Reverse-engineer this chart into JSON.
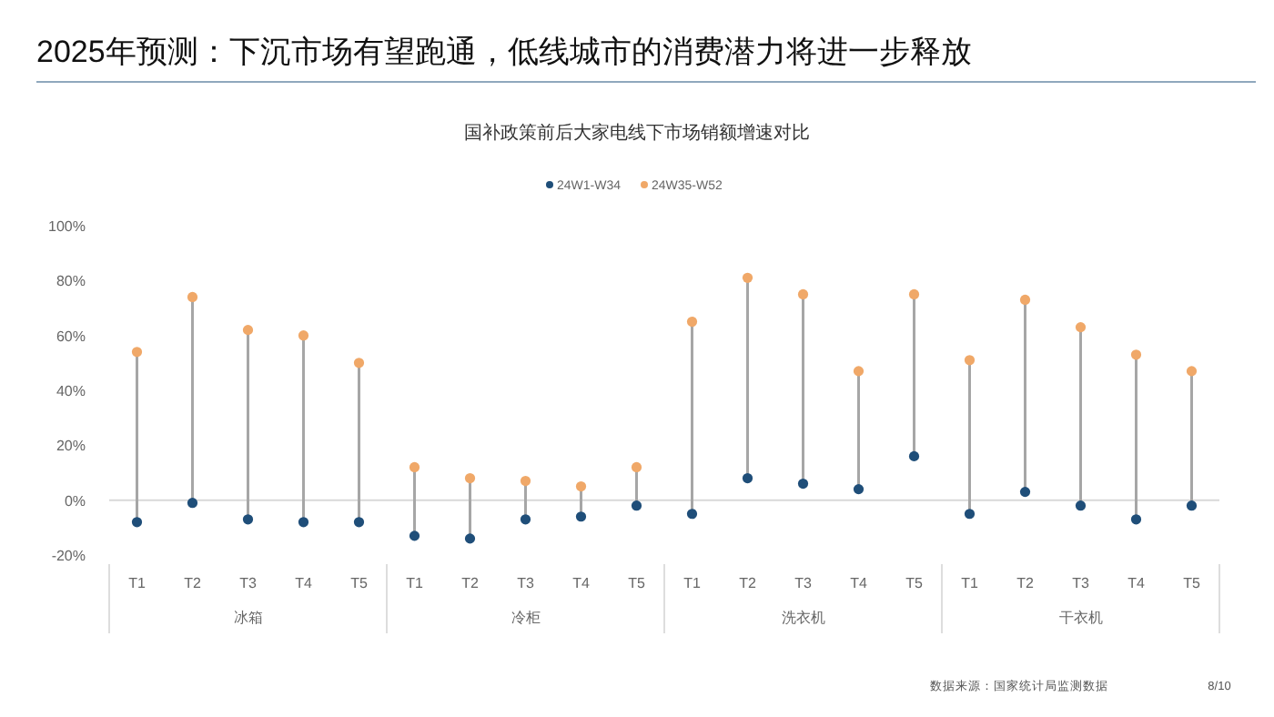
{
  "chart_data": {
    "type": "scatter",
    "title": "2025年预测：下沉市场有望跑通，低线城市的消费潜力将进一步释放",
    "subtitle": "国补政策前后大家电线下市场销额增速对比",
    "categories": [
      "T1",
      "T2",
      "T3",
      "T4",
      "T5",
      "T1",
      "T2",
      "T3",
      "T4",
      "T5",
      "T1",
      "T2",
      "T3",
      "T4",
      "T5",
      "T1",
      "T2",
      "T3",
      "T4",
      "T5"
    ],
    "series": [
      {
        "name": "24W1-W34",
        "color": "#1f4e79",
        "values": [
          -8,
          -1,
          -7,
          -8,
          -8,
          -13,
          -14,
          -7,
          -6,
          -2,
          -5,
          8,
          6,
          4,
          16,
          -5,
          3,
          -2,
          -7,
          -2
        ]
      },
      {
        "name": "24W35-W52",
        "color": "#f0a868",
        "values": [
          54,
          74,
          62,
          60,
          50,
          12,
          8,
          7,
          5,
          12,
          65,
          81,
          75,
          47,
          75,
          51,
          73,
          63,
          53,
          47
        ]
      }
    ],
    "ylim": [
      -20,
      100
    ],
    "yticks": [
      {
        "value": -20,
        "label": "-20%"
      },
      {
        "value": 0,
        "label": "0%"
      },
      {
        "value": 20,
        "label": "20%"
      },
      {
        "value": 40,
        "label": "40%"
      },
      {
        "value": 60,
        "label": "60%"
      },
      {
        "value": 80,
        "label": "80%"
      },
      {
        "value": 100,
        "label": "100%"
      }
    ],
    "ref_lines": [
      {
        "axis": "y",
        "value": 0,
        "color": "#d9d9d9"
      }
    ],
    "legend": "top",
    "marker": "circle",
    "annotations": [
      "冰箱",
      "冷柜",
      "洗衣机",
      "干衣机",
      "数据来源：国家统计局监测数据",
      "8/10"
    ]
  }
}
